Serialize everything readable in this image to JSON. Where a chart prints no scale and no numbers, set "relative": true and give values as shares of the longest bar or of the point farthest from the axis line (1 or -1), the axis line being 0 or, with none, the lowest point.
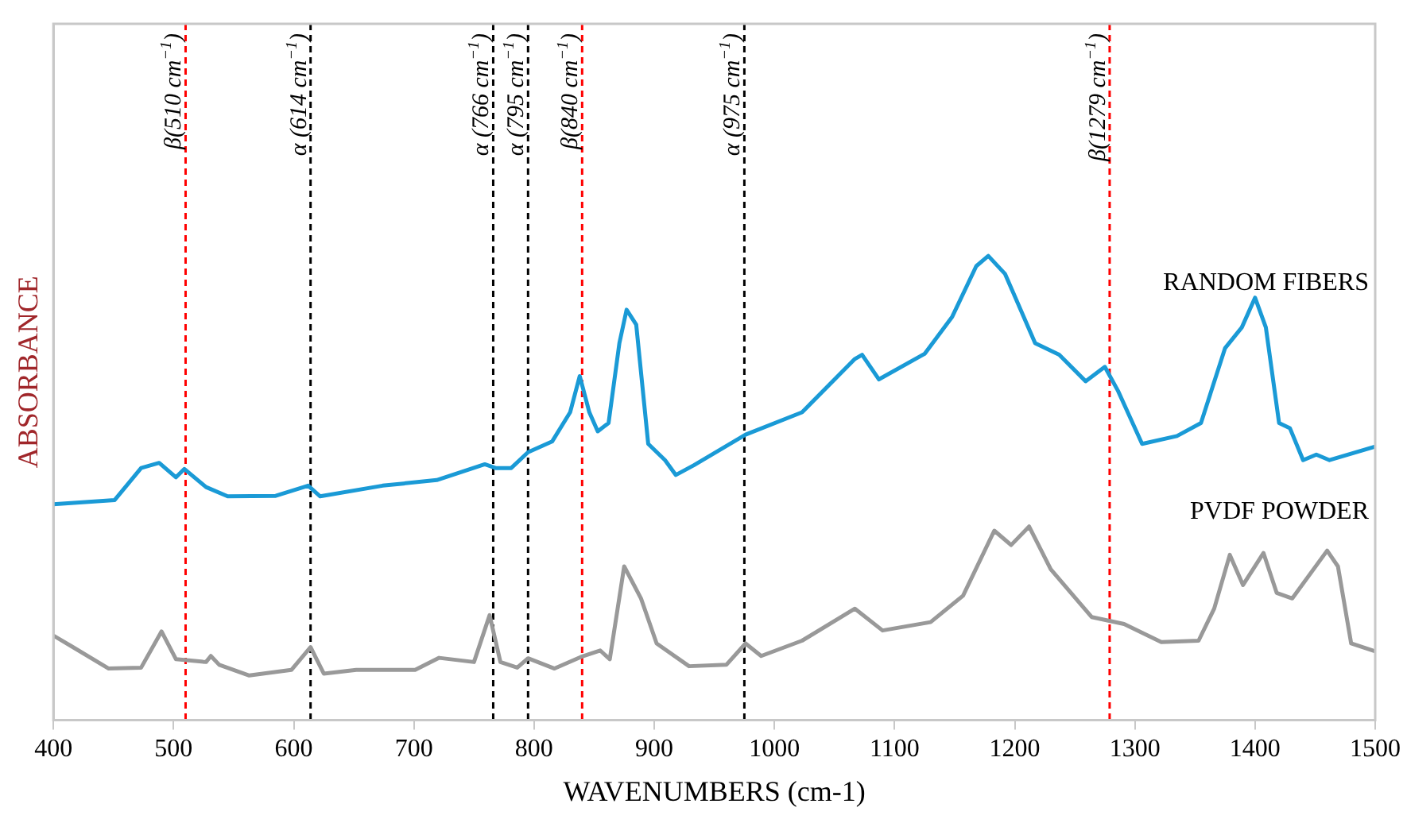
{
  "chart_data": {
    "type": "line",
    "relative": true,
    "xlabel": "WAVENUMBERS (cm-1)",
    "ylabel": "ABSORBANCE",
    "xlim": [
      400,
      1500
    ],
    "xticks": [
      400,
      500,
      600,
      700,
      800,
      900,
      1000,
      1100,
      1200,
      1300,
      1400,
      1500
    ],
    "grid": false,
    "legend": false,
    "marker": "none",
    "line_style": "solid",
    "series": [
      {
        "name": "RANDOM FIBERS",
        "color": "#1a9ad6",
        "x": [
          400,
          451,
          473,
          488,
          502,
          509,
          527,
          545,
          585,
          612,
          622,
          674,
          719,
          759,
          768,
          781,
          795,
          815,
          830,
          838,
          846,
          853,
          862,
          871,
          877,
          885,
          895,
          909,
          918,
          933,
          976,
          1023,
          1067,
          1073,
          1087,
          1125,
          1148,
          1168,
          1178,
          1192,
          1217,
          1237,
          1259,
          1275,
          1286,
          1306,
          1335,
          1355,
          1375,
          1389,
          1400,
          1409,
          1420,
          1429,
          1440,
          1451,
          1462,
          1500
        ],
        "values": [
          0.465,
          0.474,
          0.543,
          0.554,
          0.523,
          0.541,
          0.502,
          0.482,
          0.483,
          0.505,
          0.482,
          0.505,
          0.517,
          0.551,
          0.543,
          0.543,
          0.577,
          0.6,
          0.663,
          0.741,
          0.663,
          0.622,
          0.64,
          0.812,
          0.884,
          0.852,
          0.595,
          0.56,
          0.528,
          0.549,
          0.615,
          0.663,
          0.778,
          0.787,
          0.734,
          0.789,
          0.869,
          0.978,
          1,
          0.961,
          0.812,
          0.787,
          0.73,
          0.761,
          0.709,
          0.595,
          0.612,
          0.64,
          0.801,
          0.846,
          0.91,
          0.846,
          0.64,
          0.629,
          0.56,
          0.572,
          0.56,
          0.589
        ]
      },
      {
        "name": "PVDF POWDER",
        "color": "#999999",
        "x": [
          400,
          415,
          446,
          473,
          490,
          502,
          527,
          531,
          538,
          563,
          598,
          614,
          625,
          652,
          701,
          721,
          750,
          763,
          772,
          786,
          795,
          817,
          839,
          855,
          863,
          875,
          889,
          902,
          929,
          960,
          976,
          989,
          1023,
          1067,
          1090,
          1130,
          1157,
          1183,
          1197,
          1212,
          1230,
          1264,
          1291,
          1322,
          1353,
          1366,
          1379,
          1390,
          1407,
          1418,
          1431,
          1460,
          1469,
          1480,
          1500
        ],
        "values": [
          0.182,
          0.159,
          0.111,
          0.113,
          0.191,
          0.131,
          0.125,
          0.138,
          0.119,
          0.096,
          0.108,
          0.157,
          0.1,
          0.108,
          0.108,
          0.134,
          0.125,
          0.226,
          0.125,
          0.113,
          0.133,
          0.111,
          0.136,
          0.15,
          0.131,
          0.331,
          0.262,
          0.165,
          0.116,
          0.119,
          0.165,
          0.138,
          0.171,
          0.24,
          0.193,
          0.211,
          0.268,
          0.408,
          0.377,
          0.417,
          0.325,
          0.222,
          0.207,
          0.168,
          0.171,
          0.24,
          0.356,
          0.291,
          0.36,
          0.274,
          0.262,
          0.365,
          0.331,
          0.165,
          0.148
        ]
      }
    ],
    "ref_lines": [
      {
        "axis": "x",
        "value": 510,
        "label": "β(510 cm$^{−1}$)",
        "color": "#ff0000",
        "line_style": "dashed"
      },
      {
        "axis": "x",
        "value": 614,
        "label": "α (614 cm$^{−1}$)",
        "color": "#000000",
        "line_style": "dashed"
      },
      {
        "axis": "x",
        "value": 766,
        "label": "α (766 cm$^{−1}$)",
        "color": "#000000",
        "line_style": "dashed"
      },
      {
        "axis": "x",
        "value": 795,
        "label": "α (795 cm$^{−1}$)",
        "color": "#000000",
        "line_style": "dashed"
      },
      {
        "axis": "x",
        "value": 840,
        "label": "β(840 cm$^{−1}$)",
        "color": "#ff0000",
        "line_style": "dashed"
      },
      {
        "axis": "x",
        "value": 975,
        "label": "α (975 cm$^{−1}$)",
        "color": "#000000",
        "line_style": "dashed"
      },
      {
        "axis": "x",
        "value": 1279,
        "label": "β(1279 cm$^{−1}$)",
        "color": "#ff0000",
        "line_style": "dashed"
      }
    ]
  }
}
